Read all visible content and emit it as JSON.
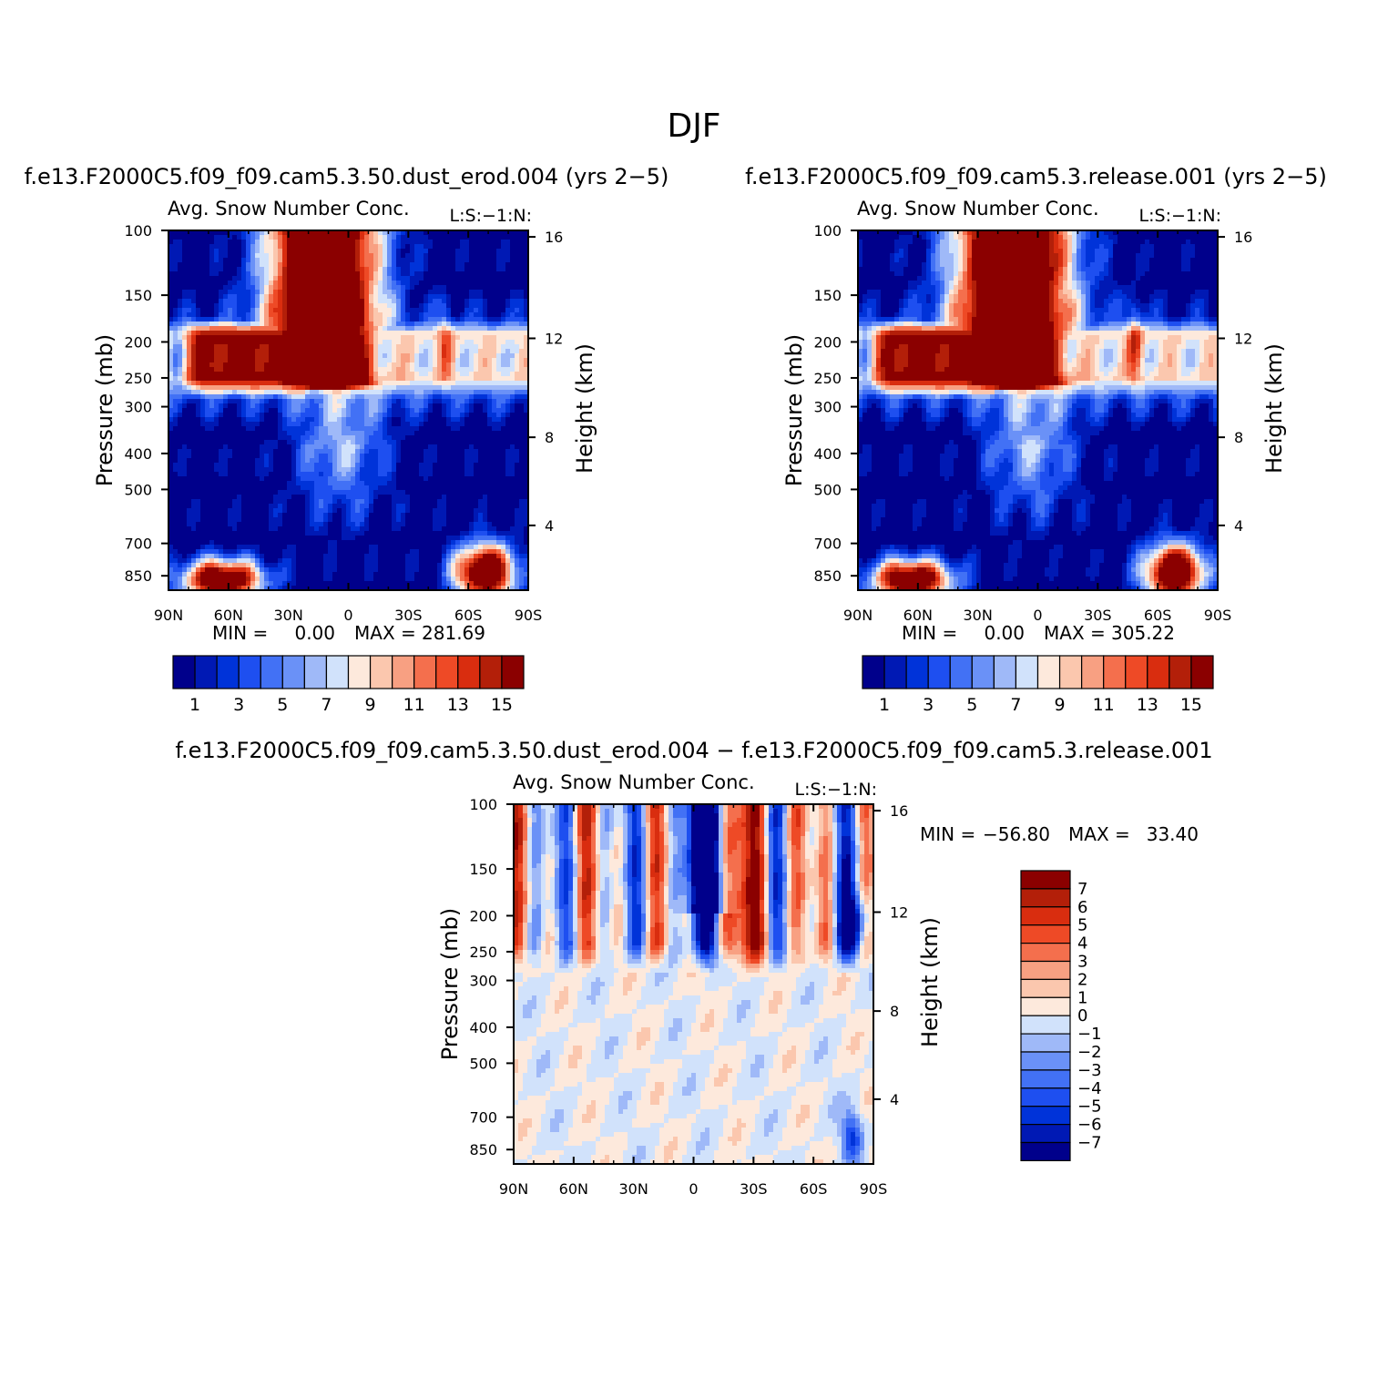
{
  "page_title": "DJF",
  "palettes": {
    "abs": [
      "#00008b",
      "#0019b4",
      "#0033d9",
      "#1e4ff0",
      "#4271f5",
      "#6a91f7",
      "#9fb9f8",
      "#d1e2fb",
      "#fde9dc",
      "#fbc7ae",
      "#f8a082",
      "#f46f4d",
      "#ee4a26",
      "#d92d0f",
      "#b31f09",
      "#8b0000"
    ],
    "diff": [
      "#00008b",
      "#0019b4",
      "#0033d9",
      "#1e4ff0",
      "#4271f5",
      "#6a91f7",
      "#9fb9f8",
      "#d1e2fb",
      "#fde9dc",
      "#fbc7ae",
      "#f8a082",
      "#f46f4d",
      "#ee4a26",
      "#d92d0f",
      "#b31f09",
      "#8b0000"
    ]
  },
  "chart_data": [
    {
      "type": "heatmap",
      "panel": "top-left",
      "title": "f.e13.F2000C5.f09_f09.cam5.3.50.dust_erod.004 (yrs 2−5)",
      "subtitle_left": "Avg. Snow Number Conc.",
      "subtitle_right": "L:S:−1:N:",
      "ylabel": "Pressure (mb)",
      "y2label": "Height (km)",
      "xticks": [
        "90N",
        "60N",
        "30N",
        "0",
        "30S",
        "60S",
        "90S"
      ],
      "yticks": [
        100,
        150,
        200,
        250,
        300,
        400,
        500,
        700,
        850
      ],
      "y2ticks": [
        16,
        12,
        8,
        4
      ],
      "min_label": "MIN =",
      "min_value": "0.00",
      "max_label": "MAX =",
      "max_value": "281.69",
      "colorbar_labels": [
        "1",
        "3",
        "5",
        "7",
        "9",
        "11",
        "13",
        "15"
      ],
      "field": "abs",
      "variant": 0
    },
    {
      "type": "heatmap",
      "panel": "top-right",
      "title": "f.e13.F2000C5.f09_f09.cam5.3.release.001 (yrs 2−5)",
      "subtitle_left": "Avg. Snow Number Conc.",
      "subtitle_right": "L:S:−1:N:",
      "ylabel": "Pressure (mb)",
      "y2label": "Height (km)",
      "xticks": [
        "90N",
        "60N",
        "30N",
        "0",
        "30S",
        "60S",
        "90S"
      ],
      "yticks": [
        100,
        150,
        200,
        250,
        300,
        400,
        500,
        700,
        850
      ],
      "y2ticks": [
        16,
        12,
        8,
        4
      ],
      "min_label": "MIN =",
      "min_value": "0.00",
      "max_label": "MAX =",
      "max_value": "305.22",
      "colorbar_labels": [
        "1",
        "3",
        "5",
        "7",
        "9",
        "11",
        "13",
        "15"
      ],
      "field": "abs",
      "variant": 1
    },
    {
      "type": "heatmap",
      "panel": "bottom",
      "title": "f.e13.F2000C5.f09_f09.cam5.3.50.dust_erod.004 − f.e13.F2000C5.f09_f09.cam5.3.release.001",
      "subtitle_left": "Avg. Snow Number Conc.",
      "subtitle_right": "L:S:−1:N:",
      "ylabel": "Pressure (mb)",
      "y2label": "Height (km)",
      "xticks": [
        "90N",
        "60N",
        "30N",
        "0",
        "30S",
        "60S",
        "90S"
      ],
      "yticks": [
        100,
        150,
        200,
        250,
        300,
        400,
        500,
        700,
        850
      ],
      "y2ticks": [
        16,
        12,
        8,
        4
      ],
      "min_label": "MIN =",
      "min_value": "−56.80",
      "max_label": "MAX =",
      "max_value": "33.40",
      "colorbar_labels": [
        "7",
        "6",
        "5",
        "4",
        "3",
        "2",
        "1",
        "0",
        "−1",
        "−2",
        "−3",
        "−4",
        "−5",
        "−6",
        "−7"
      ],
      "field": "diff",
      "variant": 2
    }
  ]
}
